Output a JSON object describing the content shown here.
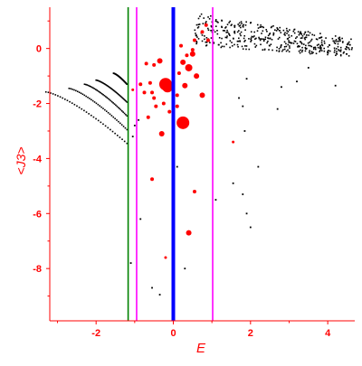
{
  "chart_data": {
    "type": "scatter",
    "title": "",
    "xlabel": "E",
    "ylabel": "<J3>",
    "xlim": [
      -3.2,
      4.7
    ],
    "ylim": [
      -9.9,
      1.5
    ],
    "x_ticks": [
      {
        "value": -2,
        "label": "-2"
      },
      {
        "value": 0,
        "label": "0"
      },
      {
        "value": 2,
        "label": "2"
      },
      {
        "value": 4,
        "label": "4"
      }
    ],
    "y_ticks": [
      {
        "value": 0,
        "label": "0"
      },
      {
        "value": -2,
        "label": "-2"
      },
      {
        "value": -4,
        "label": "-4"
      },
      {
        "value": -6,
        "label": "-6"
      },
      {
        "value": -8,
        "label": "-8"
      }
    ],
    "grid": false,
    "legend": "none",
    "colors": {
      "axis": "#ff0000",
      "tick_labels": "#ff0000",
      "dots_dark": "#000000",
      "dots_highlight": "#ff0000",
      "line_green": "#008000",
      "line_blue": "#0000ff",
      "line_magenta": "#ff00ff"
    },
    "vertical_lines": [
      {
        "x": -1.17,
        "color": "#008000",
        "width": "thin"
      },
      {
        "x": -0.95,
        "color": "#ff00ff",
        "width": "thin"
      },
      {
        "x": 0.0,
        "color": "#0000ff",
        "width": "thick"
      },
      {
        "x": 1.02,
        "color": "#ff00ff",
        "width": "thin"
      }
    ],
    "curves": [
      {
        "name": "",
        "x_start": -3.3,
        "x_end": -1.2,
        "y_start": -1.58,
        "y_end": -3.45
      },
      {
        "name": "",
        "x_start": -2.7,
        "x_end": -1.2,
        "y_start": -1.45,
        "y_end": -2.95
      },
      {
        "name": "",
        "x_start": -2.3,
        "x_end": -1.2,
        "y_start": -1.3,
        "y_end": -2.45
      },
      {
        "name": "",
        "x_start": -2.0,
        "x_end": -1.2,
        "y_start": -1.15,
        "y_end": -1.95
      },
      {
        "name": "",
        "x_start": -1.55,
        "x_end": -1.2,
        "y_start": -0.9,
        "y_end": -1.3
      }
    ],
    "band": {
      "x_start": 0.55,
      "x_end": 4.65,
      "y_top_start": 1.3,
      "y_top_end": 0.35,
      "y_bottom_start": 0.1,
      "y_bottom_end": -0.3
    },
    "scattered_points": [
      {
        "x": 2.8,
        "y": -1.4
      },
      {
        "x": 3.5,
        "y": -0.7
      },
      {
        "x": 4.2,
        "y": -1.35
      },
      {
        "x": 3.2,
        "y": -1.2
      },
      {
        "x": 1.9,
        "y": -1.1
      },
      {
        "x": 1.7,
        "y": -1.8
      },
      {
        "x": 1.8,
        "y": -2.1
      },
      {
        "x": 2.7,
        "y": -2.2
      },
      {
        "x": 1.85,
        "y": -3.0
      },
      {
        "x": 2.2,
        "y": -4.3
      },
      {
        "x": 1.55,
        "y": -4.9
      },
      {
        "x": 1.8,
        "y": -5.3
      },
      {
        "x": 1.9,
        "y": -6.0
      },
      {
        "x": 2.0,
        "y": -6.5
      },
      {
        "x": 1.1,
        "y": -5.5
      },
      {
        "x": 0.3,
        "y": -8.0
      },
      {
        "x": -0.85,
        "y": -6.2
      },
      {
        "x": -1.1,
        "y": -7.8
      },
      {
        "x": -0.55,
        "y": -8.7
      },
      {
        "x": -0.35,
        "y": -8.95
      },
      {
        "x": 0.1,
        "y": -4.3
      },
      {
        "x": -1.05,
        "y": -3.2
      },
      {
        "x": -1.0,
        "y": -2.8
      },
      {
        "x": -0.9,
        "y": -2.6
      }
    ],
    "highlight_points": [
      {
        "x": -0.2,
        "y": -1.3,
        "size": 7
      },
      {
        "x": -0.15,
        "y": -1.4,
        "size": 6
      },
      {
        "x": 0.3,
        "y": -1.35,
        "size": 3
      },
      {
        "x": 0.25,
        "y": -2.7,
        "size": 7
      },
      {
        "x": 0.4,
        "y": -0.7,
        "size": 4
      },
      {
        "x": 0.25,
        "y": -0.5,
        "size": 3
      },
      {
        "x": 0.5,
        "y": -0.2,
        "size": 3
      },
      {
        "x": 0.6,
        "y": -1.0,
        "size": 3
      },
      {
        "x": 0.75,
        "y": -1.7,
        "size": 3
      },
      {
        "x": -0.35,
        "y": -0.45,
        "size": 3
      },
      {
        "x": -0.5,
        "y": -0.6,
        "size": 2
      },
      {
        "x": -0.7,
        "y": -0.55,
        "size": 2
      },
      {
        "x": -0.55,
        "y": -1.6,
        "size": 2
      },
      {
        "x": -0.5,
        "y": -1.8,
        "size": 2
      },
      {
        "x": -0.45,
        "y": -2.1,
        "size": 2
      },
      {
        "x": -0.65,
        "y": -2.5,
        "size": 2
      },
      {
        "x": -0.3,
        "y": -3.1,
        "size": 3
      },
      {
        "x": -0.1,
        "y": -2.3,
        "size": 2
      },
      {
        "x": 0.1,
        "y": -2.1,
        "size": 2
      },
      {
        "x": -0.25,
        "y": -2.0,
        "size": 2
      },
      {
        "x": -0.85,
        "y": -1.3,
        "size": 2
      },
      {
        "x": -0.75,
        "y": -1.6,
        "size": 2
      },
      {
        "x": -0.6,
        "y": -1.25,
        "size": 2
      },
      {
        "x": 0.15,
        "y": -0.9,
        "size": 2
      },
      {
        "x": 0.35,
        "y": -0.25,
        "size": 2
      },
      {
        "x": 0.55,
        "y": 0.3,
        "size": 2
      },
      {
        "x": 0.85,
        "y": 0.85,
        "size": 2
      },
      {
        "x": 0.9,
        "y": 0.3,
        "size": 2
      },
      {
        "x": 0.2,
        "y": 0.1,
        "size": 2
      },
      {
        "x": 0.5,
        "y": -0.05,
        "size": 2
      },
      {
        "x": 0.1,
        "y": -1.7,
        "size": 2
      },
      {
        "x": 0.55,
        "y": -5.2,
        "size": 2
      },
      {
        "x": 0.4,
        "y": -6.7,
        "size": 3
      },
      {
        "x": -0.55,
        "y": -4.75,
        "size": 2
      },
      {
        "x": 1.55,
        "y": -3.4,
        "size": 1.5
      },
      {
        "x": -1.05,
        "y": -1.5,
        "size": 1.5
      },
      {
        "x": -0.2,
        "y": -7.6,
        "size": 1.5
      },
      {
        "x": 0.75,
        "y": 0.6,
        "size": 2
      }
    ]
  }
}
